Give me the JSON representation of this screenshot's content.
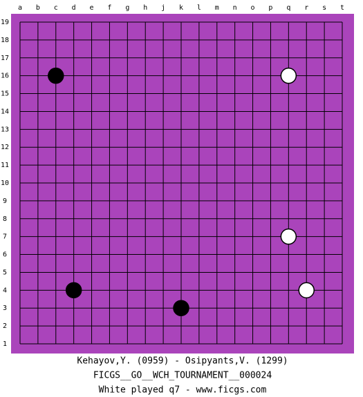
{
  "board": {
    "columns": [
      "a",
      "b",
      "c",
      "d",
      "e",
      "f",
      "g",
      "h",
      "j",
      "k",
      "l",
      "m",
      "n",
      "o",
      "p",
      "q",
      "r",
      "s",
      "t"
    ],
    "rows": [
      1,
      2,
      3,
      4,
      5,
      6,
      7,
      8,
      9,
      10,
      11,
      12,
      13,
      14,
      15,
      16,
      17,
      18,
      19
    ],
    "stones": [
      {
        "color": "black",
        "col": "c",
        "row": 16
      },
      {
        "color": "white",
        "col": "q",
        "row": 16
      },
      {
        "color": "white",
        "col": "q",
        "row": 7
      },
      {
        "color": "black",
        "col": "d",
        "row": 4
      },
      {
        "color": "white",
        "col": "r",
        "row": 4
      },
      {
        "color": "black",
        "col": "k",
        "row": 3
      }
    ]
  },
  "caption": [
    "Kehayov,Y. (0959) - Osipyants,V. (1299)",
    "FICGS__GO__WCH_TOURNAMENT__000024",
    "White played q7 - www.ficgs.com"
  ]
}
